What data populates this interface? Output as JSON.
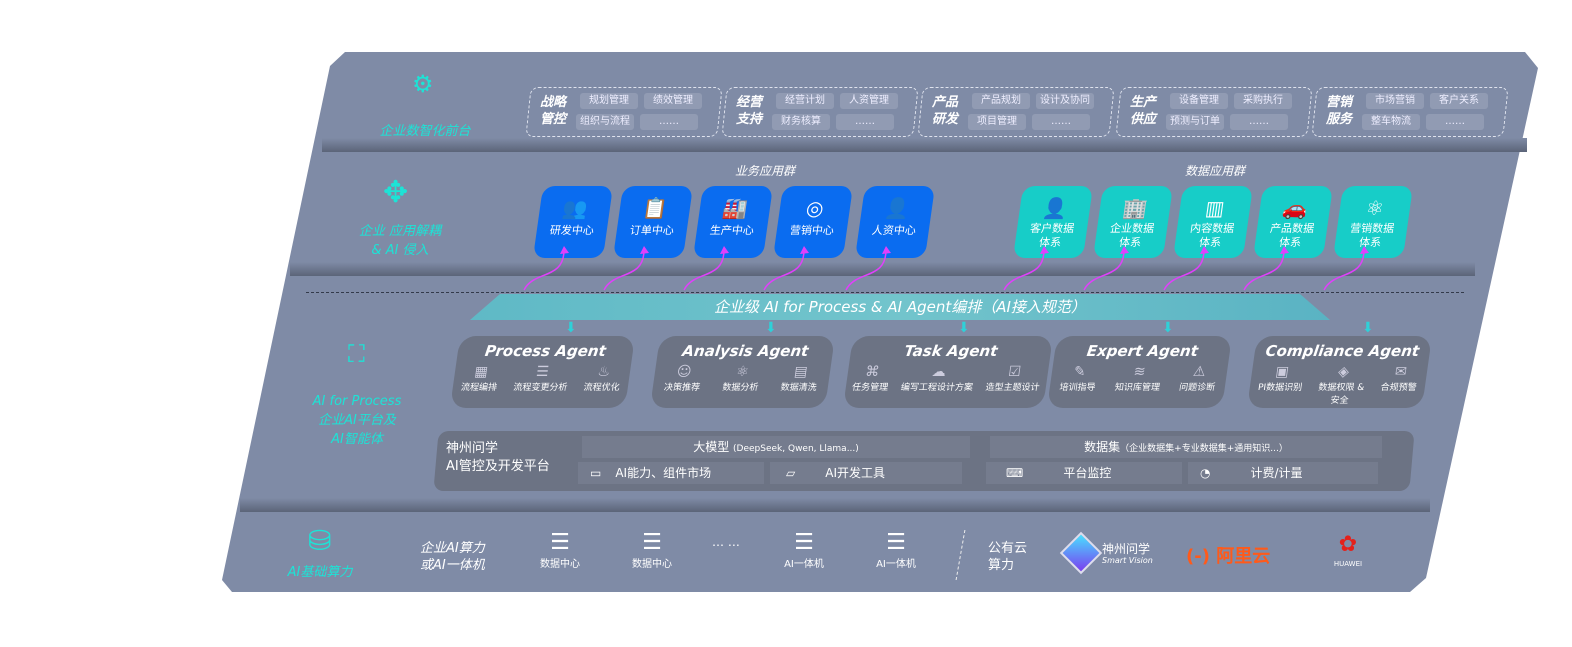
{
  "front": {
    "label": "企业数智化前台",
    "groups": [
      {
        "title": "战略\n管控",
        "items": [
          "规划管理",
          "绩效管理",
          "组织与流程",
          "……"
        ]
      },
      {
        "title": "经营\n支持",
        "items": [
          "经营计划",
          "人资管理",
          "财务核算",
          "……"
        ]
      },
      {
        "title": "产品\n研发",
        "items": [
          "产品规划",
          "设计及协同",
          "项目管理",
          "……"
        ]
      },
      {
        "title": "生产\n供应",
        "items": [
          "设备管理",
          "采购执行",
          "预测与订单",
          "……"
        ]
      },
      {
        "title": "营销\n服务",
        "items": [
          "市场营销",
          "客户关系",
          "整车物流",
          "……"
        ]
      }
    ]
  },
  "apps": {
    "label": "企业 应用解耦\n& AI 侵入",
    "business_title": "业务应用群",
    "business": [
      "研发中心",
      "订单中心",
      "生产中心",
      "营销中心",
      "人资中心"
    ],
    "data_title": "数据应用群",
    "data": [
      "客户数据\n体系",
      "企业数据\n体系",
      "内容数据\n体系",
      "产品数据\n体系",
      "营销数据\n体系"
    ]
  },
  "orchestration": "企业级 AI for Process & AI Agent编排（AI接入规范）",
  "ai": {
    "label": "AI for Process\n企业AI平台及\nAI智能体",
    "agents": [
      {
        "name": "Process Agent",
        "items": [
          "流程编排",
          "流程变更分析",
          "流程优化"
        ]
      },
      {
        "name": "Analysis Agent",
        "items": [
          "决策推荐",
          "数据分析",
          "数据清洗"
        ]
      },
      {
        "name": "Task Agent",
        "items": [
          "任务管理",
          "编写工程设计方案",
          "造型主题设计"
        ]
      },
      {
        "name": "Expert Agent",
        "items": [
          "培训指导",
          "知识库管理",
          "问题诊断"
        ]
      },
      {
        "name": "Compliance Agent",
        "items": [
          "PI数据识别",
          "数据权限 &\n安全",
          "合规预警"
        ]
      }
    ],
    "platform": {
      "title": "神州问学\nAI管控及开发平台",
      "model": "大模型",
      "model_note": "(DeepSeek, Qwen, Llama...)",
      "dataset": "数据集",
      "dataset_note": "（企业数据集+专业数据集+通用知识...）",
      "cells": [
        "AI能力、组件市场",
        "AI开发工具",
        "平台监控",
        "计费/计量"
      ]
    }
  },
  "infra": {
    "label": "AI基础算力",
    "private": "企业AI算力\n或AI一体机",
    "servers": [
      "数据中心",
      "数据中心",
      "AI一体机",
      "AI一体机"
    ],
    "ellipsis": "… …",
    "public": "公有云\n算力",
    "vendors": [
      "神州问学",
      "Smart Vision",
      "阿里云",
      "HUAWEI"
    ]
  },
  "colors": {
    "panel": "#7f8ba6",
    "accent": "#1de3d6",
    "business": "#0a6cf0",
    "data": "#17cdc8",
    "arrow": "#e040fb"
  }
}
